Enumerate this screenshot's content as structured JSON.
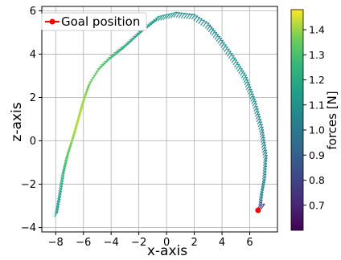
{
  "chart_data": {
    "type": "quiver",
    "xlabel": "x-axis",
    "ylabel": "z-axis",
    "xlim": [
      -9,
      8
    ],
    "ylim": [
      -4.2,
      6.2
    ],
    "xticks": [
      -8,
      -6,
      -4,
      -2,
      0,
      2,
      4,
      6
    ],
    "yticks": [
      -4,
      -2,
      0,
      2,
      4,
      6
    ],
    "grid": true,
    "colormap": "viridis",
    "colorbar": {
      "label": "forces [N]",
      "range": [
        0.6,
        1.48
      ],
      "ticks": [
        0.7,
        0.8,
        0.9,
        1.0,
        1.1,
        1.2,
        1.3,
        1.4
      ],
      "tick_labels": [
        "0.7",
        "0.8",
        "0.9",
        "1.0",
        "1.1",
        "1.2",
        "1.3",
        "1.4"
      ]
    },
    "legend": {
      "position": "top-left",
      "entries": [
        {
          "label": "Goal position",
          "color": "#ff0000",
          "marker": "circle-line"
        }
      ]
    },
    "goal_position": {
      "x": 6.6,
      "z": -3.2
    },
    "path": [
      {
        "x": -8.1,
        "z": -3.5,
        "force": 1.15
      },
      {
        "x": -7.9,
        "z": -2.8,
        "force": 1.12
      },
      {
        "x": -7.6,
        "z": -1.6,
        "force": 1.25
      },
      {
        "x": -7.3,
        "z": -0.8,
        "force": 1.33
      },
      {
        "x": -6.9,
        "z": 0.0,
        "force": 1.4
      },
      {
        "x": -6.5,
        "z": 0.9,
        "force": 1.42
      },
      {
        "x": -6.1,
        "z": 1.8,
        "force": 1.4
      },
      {
        "x": -5.7,
        "z": 2.5,
        "force": 1.36
      },
      {
        "x": -5.0,
        "z": 3.2,
        "force": 1.32
      },
      {
        "x": -4.2,
        "z": 3.7,
        "force": 1.28
      },
      {
        "x": -3.2,
        "z": 4.2,
        "force": 1.22
      },
      {
        "x": -2.0,
        "z": 4.9,
        "force": 1.16
      },
      {
        "x": -0.8,
        "z": 5.5,
        "force": 1.12
      },
      {
        "x": 0.5,
        "z": 5.7,
        "force": 1.08
      },
      {
        "x": 1.8,
        "z": 5.6,
        "force": 1.06
      },
      {
        "x": 2.8,
        "z": 5.2,
        "force": 1.05
      },
      {
        "x": 3.7,
        "z": 4.5,
        "force": 1.06
      },
      {
        "x": 4.6,
        "z": 3.7,
        "force": 1.08
      },
      {
        "x": 5.5,
        "z": 2.8,
        "force": 1.1
      },
      {
        "x": 6.2,
        "z": 1.6,
        "force": 1.08
      },
      {
        "x": 6.7,
        "z": 0.4,
        "force": 1.04
      },
      {
        "x": 7.0,
        "z": -0.9,
        "force": 1.02
      },
      {
        "x": 6.9,
        "z": -1.9,
        "force": 1.05
      },
      {
        "x": 6.7,
        "z": -2.6,
        "force": 1.08
      },
      {
        "x": 6.6,
        "z": -3.2,
        "force": 0.8
      },
      {
        "x": 7.0,
        "z": -3.1,
        "force": 0.62
      }
    ]
  }
}
